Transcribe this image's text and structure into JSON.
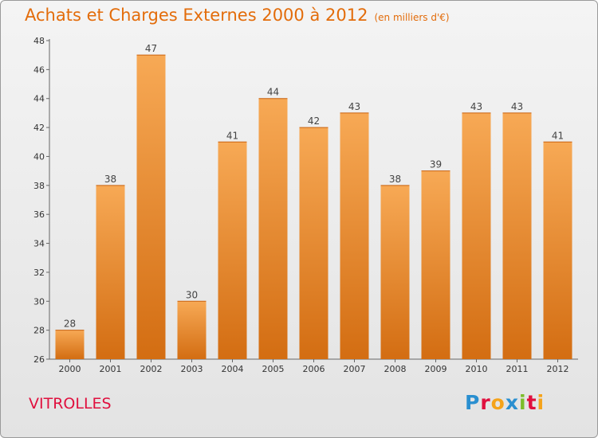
{
  "title": "Achats et Charges Externes 2000 à 2012",
  "subtitle": "(en milliers d'€)",
  "commune": "VITROLLES",
  "logo": {
    "letters": [
      "P",
      "r",
      "o",
      "x",
      "i",
      "t",
      "i"
    ],
    "colors": [
      "#2a8fd0",
      "#e0103e",
      "#f5a31a",
      "#2a8fd0",
      "#7cbd2a",
      "#e0103e",
      "#f5a31a"
    ]
  },
  "colors": {
    "bar_top": "#f7a955",
    "bar_bottom": "#d36d12",
    "accent": "#e36c0a"
  },
  "chart_data": {
    "type": "bar",
    "categories": [
      "2000",
      "2001",
      "2002",
      "2003",
      "2004",
      "2005",
      "2006",
      "2007",
      "2008",
      "2009",
      "2010",
      "2011",
      "2012"
    ],
    "values": [
      28,
      38,
      47,
      30,
      41,
      44,
      42,
      43,
      38,
      39,
      43,
      43,
      41
    ],
    "ylim": [
      26,
      48
    ],
    "yticks": [
      26,
      28,
      30,
      32,
      34,
      36,
      38,
      40,
      42,
      44,
      46,
      48
    ],
    "grid": false,
    "data_labels": true
  }
}
